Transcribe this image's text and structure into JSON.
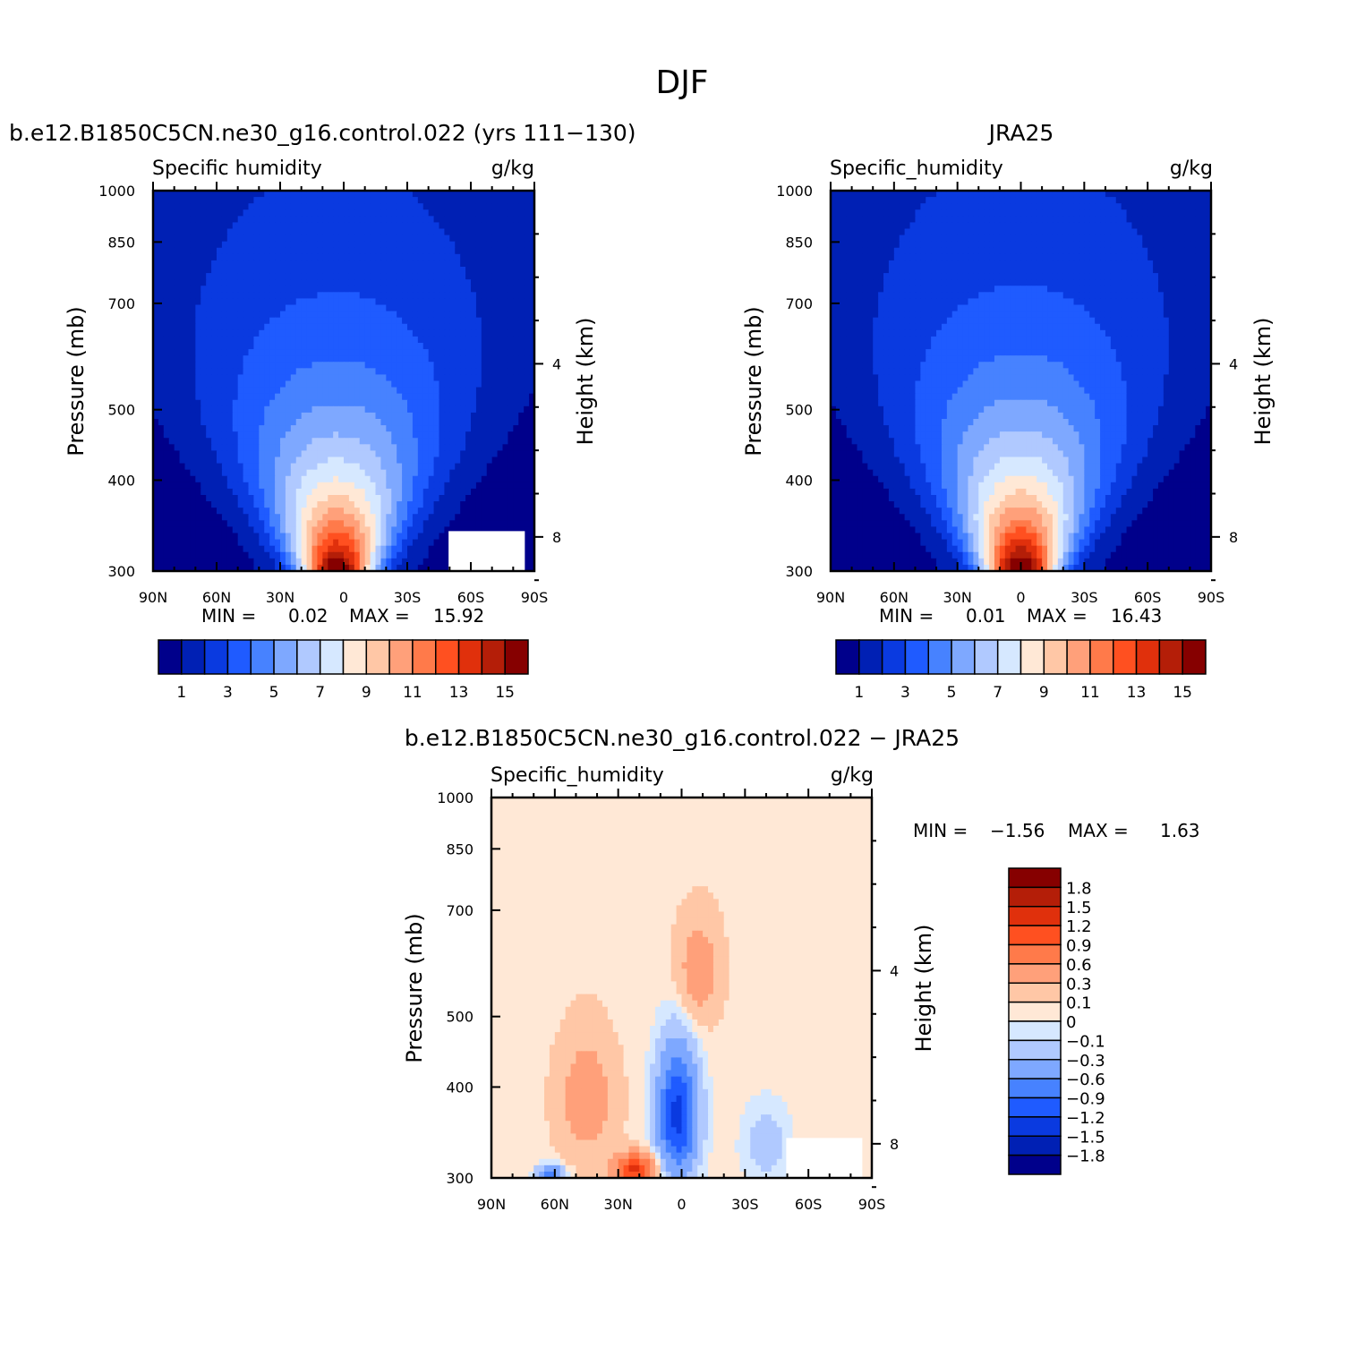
{
  "page_title": "DJF",
  "colors": {
    "model_palette": [
      "#00008b",
      "#0020b4",
      "#0a3ae0",
      "#1f5bff",
      "#4782ff",
      "#7ea8ff",
      "#b0c9ff",
      "#d6e8ff",
      "#ffe8d6",
      "#ffc7a6",
      "#ffa07a",
      "#ff7a4a",
      "#ff5020",
      "#e0300c",
      "#b41e08",
      "#860000"
    ],
    "diff_palette": [
      "#00008b",
      "#0020b4",
      "#0a3ae0",
      "#1f5bff",
      "#4782ff",
      "#7ea8ff",
      "#b0c9ff",
      "#d6e8ff",
      "#ffe8d6",
      "#ffc7a6",
      "#ffa07a",
      "#ff7a4a",
      "#ff5020",
      "#e0300c",
      "#b41e08",
      "#860000"
    ]
  },
  "chart_data": [
    {
      "type": "contour",
      "panel": "model",
      "header": "b.e12.B1850C5CN.ne30_g16.control.022 (yrs 111−130)",
      "title_left": "Specific humidity",
      "title_right": "g/kg",
      "ylabel": "Pressure (mb)",
      "ylabel_right": "Height (km)",
      "x_ticks": [
        "90N",
        "60N",
        "30N",
        "0",
        "30S",
        "60S",
        "90S"
      ],
      "y_ticks": [
        "300",
        "400",
        "500",
        "700",
        "850",
        "1000"
      ],
      "y_ticks_right": [
        "8",
        "4"
      ],
      "xlim": [
        90,
        -90
      ],
      "ylim": [
        1000,
        300
      ],
      "minmax_text": {
        "min_label": "MIN =",
        "min": "0.02",
        "max_label": "MAX =",
        "max": "15.92"
      },
      "colorbar_labels": [
        "1",
        "3",
        "5",
        "7",
        "9",
        "11",
        "13",
        "15"
      ],
      "levels": [
        1,
        2,
        3,
        4,
        5,
        6,
        7,
        8,
        9,
        10,
        11,
        12,
        13,
        14,
        15
      ],
      "max": 15.92,
      "peak_lat": 3
    },
    {
      "type": "contour",
      "panel": "obs",
      "header": "JRA25",
      "title_left": "Specific_humidity",
      "title_right": "g/kg",
      "ylabel": "Pressure (mb)",
      "ylabel_right": "Height (km)",
      "x_ticks": [
        "90N",
        "60N",
        "30N",
        "0",
        "30S",
        "60S",
        "90S"
      ],
      "y_ticks": [
        "300",
        "400",
        "500",
        "700",
        "850",
        "1000"
      ],
      "y_ticks_right": [
        "8",
        "4"
      ],
      "xlim": [
        90,
        -90
      ],
      "ylim": [
        1000,
        300
      ],
      "minmax_text": {
        "min_label": "MIN =",
        "min": "0.01",
        "max_label": "MAX =",
        "max": "16.43"
      },
      "colorbar_labels": [
        "1",
        "3",
        "5",
        "7",
        "9",
        "11",
        "13",
        "15"
      ],
      "levels": [
        1,
        2,
        3,
        4,
        5,
        6,
        7,
        8,
        9,
        10,
        11,
        12,
        13,
        14,
        15
      ],
      "max": 16.43,
      "peak_lat": 0
    },
    {
      "type": "contour",
      "panel": "difference",
      "header": "b.e12.B1850C5CN.ne30_g16.control.022 − JRA25",
      "title_left": "Specific_humidity",
      "title_right": "g/kg",
      "ylabel": "Pressure (mb)",
      "ylabel_right": "Height (km)",
      "x_ticks": [
        "90N",
        "60N",
        "30N",
        "0",
        "30S",
        "60S",
        "90S"
      ],
      "y_ticks": [
        "300",
        "400",
        "500",
        "700",
        "850",
        "1000"
      ],
      "y_ticks_right": [
        "8",
        "4"
      ],
      "xlim": [
        90,
        -90
      ],
      "ylim": [
        1000,
        300
      ],
      "minmax_text": {
        "min_label": "MIN =",
        "min": "−1.56",
        "max_label": "MAX =",
        "max": "1.63"
      },
      "colorbar_labels": [
        "1.8",
        "1.5",
        "1.2",
        "0.9",
        "0.6",
        "0.3",
        "0.1",
        "0",
        "−0.1",
        "−0.3",
        "−0.6",
        "−0.9",
        "−1.2",
        "−1.5",
        "−1.8"
      ],
      "levels": [
        -1.8,
        -1.5,
        -1.2,
        -0.9,
        -0.6,
        -0.3,
        -0.1,
        0,
        0.1,
        0.3,
        0.6,
        0.9,
        1.2,
        1.5,
        1.8
      ]
    }
  ]
}
